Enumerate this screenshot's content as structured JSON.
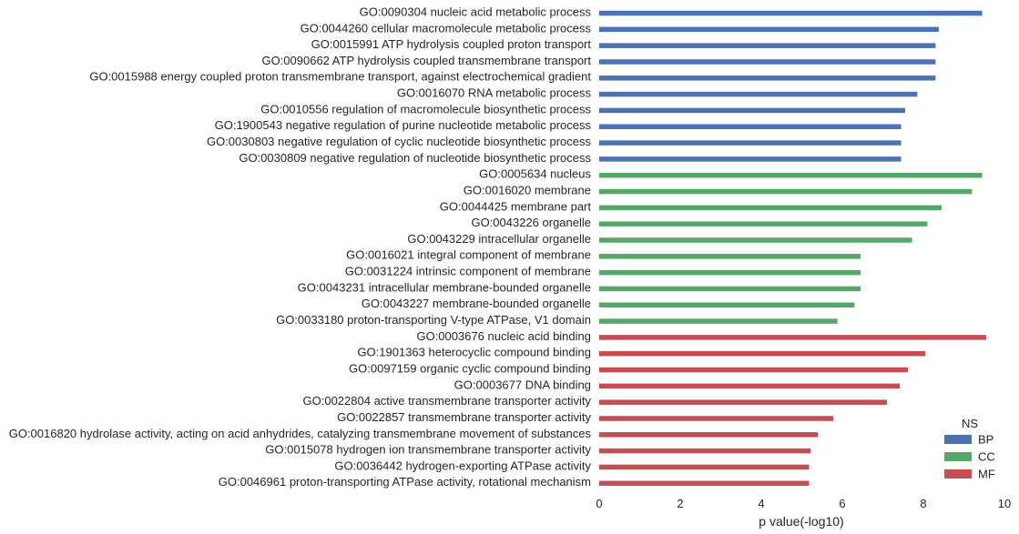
{
  "chart_data": {
    "type": "bar",
    "orientation": "horizontal",
    "xlabel": "p value(-log10)",
    "xlim": [
      0,
      10
    ],
    "xticks": [
      "0",
      "2",
      "4",
      "6",
      "8",
      "10"
    ],
    "grid": false,
    "legend": {
      "title": "NS",
      "placement": "bottom-right",
      "entries": [
        {
          "name": "BP",
          "color": "#4c72b0"
        },
        {
          "name": "CC",
          "color": "#55a868"
        },
        {
          "name": "MF",
          "color": "#c44e52"
        }
      ]
    },
    "rows": [
      {
        "label": "GO:0090304 nucleic acid metabolic process",
        "value": 9.45,
        "ns": "BP"
      },
      {
        "label": "GO:0044260 cellular macromolecule metabolic process",
        "value": 8.38,
        "ns": "BP"
      },
      {
        "label": "GO:0015991 ATP hydrolysis coupled proton transport",
        "value": 8.3,
        "ns": "BP"
      },
      {
        "label": "GO:0090662 ATP hydrolysis coupled transmembrane transport",
        "value": 8.3,
        "ns": "BP"
      },
      {
        "label": "GO:0015988 energy coupled proton transmembrane transport, against electrochemical gradient",
        "value": 8.3,
        "ns": "BP"
      },
      {
        "label": "GO:0016070 RNA metabolic process",
        "value": 7.85,
        "ns": "BP"
      },
      {
        "label": "GO:0010556 regulation of macromolecule biosynthetic process",
        "value": 7.55,
        "ns": "BP"
      },
      {
        "label": "GO:1900543 negative regulation of purine nucleotide metabolic process",
        "value": 7.45,
        "ns": "BP"
      },
      {
        "label": "GO:0030803 negative regulation of cyclic nucleotide biosynthetic process",
        "value": 7.45,
        "ns": "BP"
      },
      {
        "label": "GO:0030809 negative regulation of nucleotide biosynthetic process",
        "value": 7.45,
        "ns": "BP"
      },
      {
        "label": "GO:0005634 nucleus",
        "value": 9.45,
        "ns": "CC"
      },
      {
        "label": "GO:0016020 membrane",
        "value": 9.2,
        "ns": "CC"
      },
      {
        "label": "GO:0044425 membrane part",
        "value": 8.45,
        "ns": "CC"
      },
      {
        "label": "GO:0043226 organelle",
        "value": 8.1,
        "ns": "CC"
      },
      {
        "label": "GO:0043229 intracellular organelle",
        "value": 7.72,
        "ns": "CC"
      },
      {
        "label": "GO:0016021 integral component of membrane",
        "value": 6.45,
        "ns": "CC"
      },
      {
        "label": "GO:0031224 intrinsic component of membrane",
        "value": 6.45,
        "ns": "CC"
      },
      {
        "label": "GO:0043231 intracellular membrane-bounded organelle",
        "value": 6.45,
        "ns": "CC"
      },
      {
        "label": "GO:0043227 membrane-bounded organelle",
        "value": 6.3,
        "ns": "CC"
      },
      {
        "label": "GO:0033180 proton-transporting V-type ATPase, V1 domain",
        "value": 5.88,
        "ns": "CC"
      },
      {
        "label": "GO:0003676 nucleic acid binding",
        "value": 9.55,
        "ns": "MF"
      },
      {
        "label": "GO:1901363 heterocyclic compound binding",
        "value": 8.05,
        "ns": "MF"
      },
      {
        "label": "GO:0097159 organic cyclic compound binding",
        "value": 7.62,
        "ns": "MF"
      },
      {
        "label": "GO:0003677 DNA binding",
        "value": 7.42,
        "ns": "MF"
      },
      {
        "label": "GO:0022804 active transmembrane transporter activity",
        "value": 7.1,
        "ns": "MF"
      },
      {
        "label": "GO:0022857 transmembrane transporter activity",
        "value": 5.78,
        "ns": "MF"
      },
      {
        "label": "GO:0016820 hydrolase activity, acting on acid anhydrides, catalyzing transmembrane movement of substances",
        "value": 5.4,
        "ns": "MF"
      },
      {
        "label": "GO:0015078 hydrogen ion transmembrane transporter activity",
        "value": 5.22,
        "ns": "MF"
      },
      {
        "label": "GO:0036442 hydrogen-exporting ATPase activity",
        "value": 5.18,
        "ns": "MF"
      },
      {
        "label": "GO:0046961 proton-transporting ATPase activity, rotational mechanism",
        "value": 5.18,
        "ns": "MF"
      }
    ]
  }
}
